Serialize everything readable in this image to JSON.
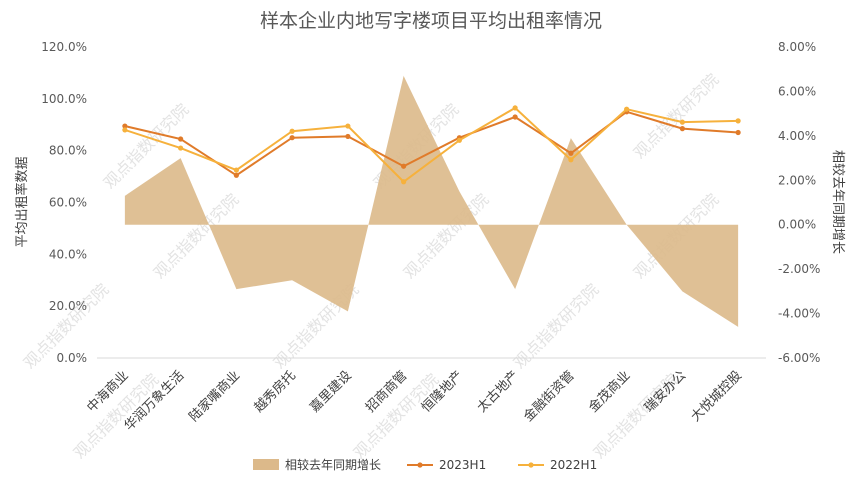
{
  "chart_data": {
    "type": "line",
    "title": "样本企业内地写字楼项目平均出租率情况",
    "categories": [
      "中海商业",
      "华润万象生活",
      "陆家嘴商业",
      "越秀房托",
      "嘉里建设",
      "招商商管",
      "恒隆地产",
      "太古地产",
      "金融街资管",
      "金茂商业",
      "瑞安办公",
      "大悦城控股"
    ],
    "ylabel": "平均出租率数据",
    "y2label": "相较去年同期增长",
    "ylim": [
      0,
      120
    ],
    "y2lim": [
      -6,
      8
    ],
    "yticks": [
      "0.0%",
      "20.0%",
      "40.0%",
      "60.0%",
      "80.0%",
      "100.0%",
      "120.0%"
    ],
    "y2ticks": [
      "-6.00%",
      "-4.00%",
      "-2.00%",
      "0.00%",
      "2.00%",
      "4.00%",
      "6.00%",
      "8.00%"
    ],
    "series": [
      {
        "name": "相较去年同期增长",
        "kind": "area",
        "axis": "right",
        "color": "#dcb98a",
        "values": [
          1.3,
          3.0,
          -2.9,
          -2.5,
          -3.9,
          6.7,
          1.5,
          -2.9,
          3.9,
          0.0,
          -3.0,
          -4.6
        ]
      },
      {
        "name": "2023H1",
        "kind": "line",
        "axis": "left",
        "color": "#e07b2a",
        "values": [
          89.5,
          84.5,
          70.5,
          85.0,
          85.5,
          74.0,
          85.0,
          93.0,
          79.0,
          95.0,
          88.5,
          87.0
        ]
      },
      {
        "name": "2022H1",
        "kind": "line",
        "axis": "left",
        "color": "#f6b13c",
        "values": [
          88.0,
          81.0,
          72.5,
          87.5,
          89.5,
          68.0,
          84.0,
          96.5,
          76.5,
          96.0,
          91.0,
          91.5
        ]
      }
    ],
    "legend_position": "bottom",
    "grid": false
  },
  "watermark": "观点指数研究院"
}
